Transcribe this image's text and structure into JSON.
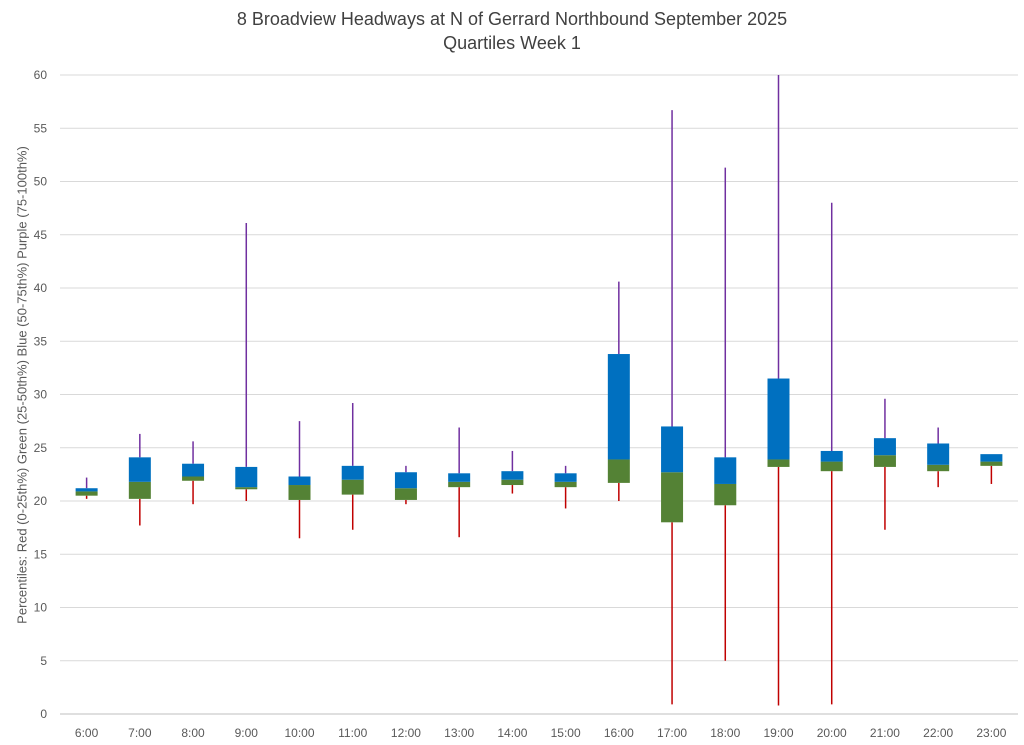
{
  "chart_data": {
    "type": "box",
    "title": "8 Broadview Headways at N of Gerrard Northbound September 2025",
    "subtitle": "Quartiles Week 1",
    "xlabel": "",
    "ylabel": "Percentiles:  Red (0-25th%)  Green (25-50th%)  Blue (50-75th%)  Purple (75-100th%)",
    "ylim": [
      0,
      60
    ],
    "yticks": [
      0,
      5,
      10,
      15,
      20,
      25,
      30,
      35,
      40,
      45,
      50,
      55,
      60
    ],
    "grid": true,
    "legend": "none",
    "colors": {
      "red_0_25": "#c00000",
      "green_25_50": "#548235",
      "blue_50_75": "#0070c0",
      "purple_75_100": "#7030a0",
      "grid": "#d9d9d9",
      "axis": "#bfbfbf"
    },
    "categories": [
      "6:00",
      "7:00",
      "8:00",
      "9:00",
      "10:00",
      "11:00",
      "12:00",
      "13:00",
      "14:00",
      "15:00",
      "16:00",
      "17:00",
      "18:00",
      "19:00",
      "20:00",
      "21:00",
      "22:00",
      "23:00"
    ],
    "min": [
      20.2,
      17.7,
      19.7,
      20.0,
      16.5,
      17.3,
      19.7,
      16.6,
      20.7,
      19.3,
      20.0,
      0.9,
      5.0,
      0.8,
      0.9,
      17.3,
      21.3,
      21.6
    ],
    "q1": [
      20.5,
      20.2,
      21.9,
      21.1,
      20.1,
      20.6,
      20.1,
      21.3,
      21.5,
      21.3,
      21.7,
      18.0,
      19.6,
      23.2,
      22.8,
      23.2,
      22.8,
      23.3
    ],
    "median": [
      20.9,
      21.8,
      22.3,
      21.3,
      21.5,
      22.0,
      21.2,
      21.8,
      22.0,
      21.8,
      23.9,
      22.7,
      21.6,
      23.9,
      23.7,
      24.3,
      23.4,
      23.7
    ],
    "q3": [
      21.2,
      24.1,
      23.5,
      23.2,
      22.3,
      23.3,
      22.7,
      22.6,
      22.8,
      22.6,
      33.8,
      27.0,
      24.1,
      31.5,
      24.7,
      25.9,
      25.4,
      24.4
    ],
    "max": [
      22.2,
      26.3,
      25.6,
      46.1,
      27.5,
      29.2,
      23.3,
      26.9,
      24.7,
      23.3,
      40.6,
      56.7,
      51.3,
      60.0,
      48.0,
      29.6,
      26.9,
      24.4
    ]
  }
}
